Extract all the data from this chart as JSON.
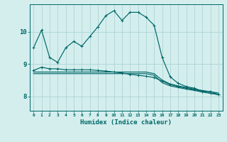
{
  "xlabel": "Humidex (Indice chaleur)",
  "bg_color": "#d4eeee",
  "grid_color": "#aed4d4",
  "line_color": "#006666",
  "x_ticks": [
    0,
    1,
    2,
    3,
    4,
    5,
    6,
    7,
    8,
    9,
    10,
    11,
    12,
    13,
    14,
    15,
    16,
    17,
    18,
    19,
    20,
    21,
    22,
    23
  ],
  "y_ticks": [
    8,
    9,
    10
  ],
  "ylim": [
    7.55,
    10.85
  ],
  "xlim": [
    -0.5,
    23.5
  ],
  "series1": [
    9.5,
    10.05,
    9.2,
    9.05,
    9.5,
    9.7,
    9.55,
    9.85,
    10.15,
    10.5,
    10.65,
    10.35,
    10.6,
    10.6,
    10.45,
    10.2,
    9.2,
    8.6,
    8.4,
    8.3,
    8.25,
    8.15,
    8.15,
    8.05
  ],
  "series2": [
    8.75,
    8.75,
    8.75,
    8.75,
    8.75,
    8.75,
    8.75,
    8.75,
    8.75,
    8.75,
    8.75,
    8.75,
    8.75,
    8.75,
    8.75,
    8.7,
    8.5,
    8.38,
    8.32,
    8.27,
    8.22,
    8.18,
    8.14,
    8.1
  ],
  "series3": [
    8.7,
    8.7,
    8.7,
    8.7,
    8.7,
    8.7,
    8.7,
    8.7,
    8.7,
    8.7,
    8.7,
    8.7,
    8.7,
    8.7,
    8.7,
    8.65,
    8.42,
    8.32,
    8.27,
    8.22,
    8.18,
    8.13,
    8.09,
    8.05
  ],
  "series4": [
    8.8,
    8.9,
    8.85,
    8.85,
    8.82,
    8.82,
    8.82,
    8.82,
    8.8,
    8.78,
    8.75,
    8.72,
    8.68,
    8.65,
    8.62,
    8.58,
    8.47,
    8.36,
    8.3,
    8.25,
    8.2,
    8.15,
    8.1,
    8.05
  ]
}
